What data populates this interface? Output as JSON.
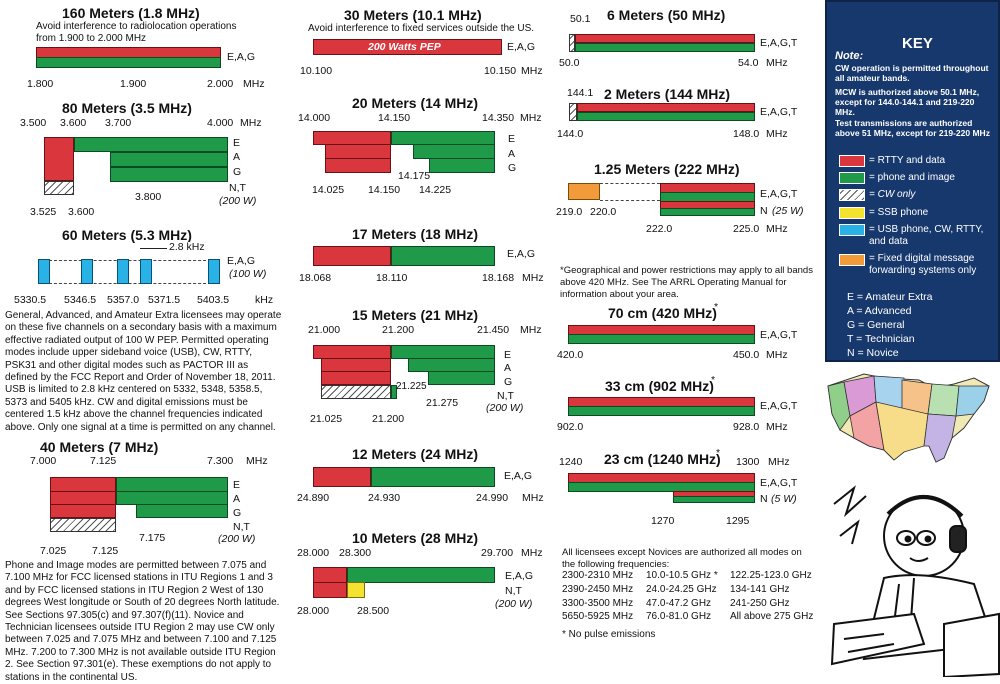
{
  "bands": {
    "b160": {
      "title": "160 Meters (1.8 MHz)",
      "note": "Avoid interference to radiolocation operations from 1.900 to 2.000 MHz",
      "classes": "E,A,G",
      "f1": "1.800",
      "f2": "1.900",
      "f3": "2.000",
      "unit": "MHz"
    },
    "b80": {
      "title": "80 Meters (3.5 MHz)",
      "f1": "3.500",
      "f2": "3.600",
      "f3": "3.700",
      "f4": "4.000",
      "unit": "MHz",
      "c1": "E",
      "c2": "A",
      "c3": "G",
      "c4": "N,T",
      "pw": "(200 W)",
      "f5": "3.800",
      "f6": "3.525",
      "f7": "3.600"
    },
    "b60": {
      "title": "60 Meters (5.3 MHz)",
      "bw": "2.8 kHz",
      "classes": "E,A,G",
      "pw": "(100 W)",
      "ch": [
        "5330.5",
        "5346.5",
        "5357.0",
        "5371.5",
        "5403.5"
      ],
      "unit": "kHz",
      "note": "General, Advanced, and Amateur Extra licensees may operate on these five channels on a secondary basis with a maximum effective radiated output of 100 W PEP. Permitted operating modes include upper sideband voice (USB), CW, RTTY, PSK31 and other digital modes such as PACTOR III as defined by the FCC Report and Order of November 18, 2011. USB is limited to 2.8 kHz centered on 5332, 5348, 5358.5, 5373 and 5405 kHz. CW and digital emissions must be centered 1.5 kHz above the channel frequencies indicated above. Only one signal at a time is permitted on any channel."
    },
    "b40": {
      "title": "40 Meters (7 MHz)",
      "f1": "7.000",
      "f2": "7.125",
      "f3": "7.300",
      "unit": "MHz",
      "c1": "E",
      "c2": "A",
      "c3": "G",
      "c4": "N,T",
      "pw": "(200 W)",
      "f4": "7.175",
      "f5": "7.025",
      "f6": "7.125",
      "note": "Phone and Image modes are permitted between 7.075 and 7.100 MHz for FCC licensed stations in ITU Regions 1 and 3 and by FCC licensed stations in ITU Region 2 West of 130 degrees West longitude or South of 20 degrees North latitude. See Sections 97.305(c) and 97.307(f)(11). Novice and Technician licensees outside ITU Region 2 may use CW only between 7.025 and 7.075 MHz and between 7.100 and 7.125 MHz. 7.200 to 7.300 MHz is not available outside ITU Region 2. See Section 97.301(e). These exemptions do not apply to stations in the continental US."
    },
    "b30": {
      "title": "30 Meters (10.1 MHz)",
      "note": "Avoid interference to fixed services outside the US.",
      "pep": "200 Watts PEP",
      "classes": "E,A,G",
      "f1": "10.100",
      "f2": "10.150",
      "unit": "MHz"
    },
    "b20": {
      "title": "20 Meters (14 MHz)",
      "f1": "14.000",
      "f2": "14.150",
      "f3": "14.350",
      "unit": "MHz",
      "c1": "E",
      "c2": "A",
      "c3": "G",
      "f4": "14.175",
      "f5": "14.025",
      "f6": "14.150",
      "f7": "14.225"
    },
    "b17": {
      "title": "17 Meters (18 MHz)",
      "classes": "E,A,G",
      "f1": "18.068",
      "f2": "18.110",
      "f3": "18.168",
      "unit": "MHz"
    },
    "b15": {
      "title": "15 Meters (21 MHz)",
      "f1": "21.000",
      "f2": "21.200",
      "f3": "21.450",
      "unit": "MHz",
      "c1": "E",
      "c2": "A",
      "c3": "G",
      "c4": "N,T",
      "pw": "(200 W)",
      "f4": "21.225",
      "f5": "21.275",
      "f6": "21.025",
      "f7": "21.200"
    },
    "b12": {
      "title": "12 Meters (24 MHz)",
      "classes": "E,A,G",
      "f1": "24.890",
      "f2": "24.930",
      "f3": "24.990",
      "unit": "MHz"
    },
    "b10": {
      "title": "10 Meters (28 MHz)",
      "f1": "28.000",
      "f2": "28.300",
      "f3": "29.700",
      "unit": "MHz",
      "c1": "E,A,G",
      "c2": "N,T",
      "pw": "(200 W)",
      "f4": "28.000",
      "f5": "28.500"
    },
    "b6": {
      "title": "6 Meters (50 MHz)",
      "f0": "50.1",
      "classes": "E,A,G,T",
      "f1": "50.0",
      "f2": "54.0",
      "unit": "MHz"
    },
    "b2": {
      "title": "2 Meters (144 MHz)",
      "f0": "144.1",
      "classes": "E,A,G,T",
      "f1": "144.0",
      "f2": "148.0",
      "unit": "MHz"
    },
    "b125": {
      "title": "1.25 Meters (222 MHz)",
      "classes": "E,A,G,T",
      "c2": "N",
      "pw": "(25 W)",
      "f1": "219.0",
      "f2": "220.0",
      "f3": "222.0",
      "f4": "225.0",
      "unit": "MHz"
    },
    "geo": "*Geographical and power restrictions may apply to all bands above 420 MHz. See The ARRL Operating Manual for information about your area.",
    "b70": {
      "title": "70 cm (420 MHz)",
      "star": "*",
      "classes": "E,A,G,T",
      "f1": "420.0",
      "f2": "450.0",
      "unit": "MHz"
    },
    "b33": {
      "title": "33 cm (902 MHz)",
      "star": "*",
      "classes": "E,A,G,T",
      "f1": "902.0",
      "f2": "928.0",
      "unit": "MHz"
    },
    "b23": {
      "title": "23 cm (1240 MHz)",
      "star": "*",
      "f1": "1240",
      "f2": "1300",
      "unit": "MHz",
      "classes": "E,A,G,T",
      "c2": "N",
      "pw": "(5 W)",
      "f3": "1270",
      "f4": "1295"
    }
  },
  "shf": {
    "intro": "All licensees except Novices are authorized all modes on the following frequencies:",
    "cols": [
      [
        "2300-2310 MHz",
        "2390-2450 MHz",
        "3300-3500 MHz",
        "5650-5925 MHz"
      ],
      [
        "10.0-10.5 GHz *",
        "24.0-24.25 GHz",
        "47.0-47.2 GHz",
        "76.0-81.0 GHz"
      ],
      [
        "122.25-123.0 GHz",
        "134-141 GHz",
        "241-250 GHz",
        "All above 275 GHz"
      ]
    ],
    "foot": "* No pulse emissions"
  },
  "key": {
    "title": "KEY",
    "note_head": "Note:",
    "notes": [
      "CW operation is permitted throughout all amateur bands.",
      "MCW is authorized above 50.1 MHz, except for 144.0-144.1 and 219-220 MHz.",
      "Test transmissions are authorized above 51 MHz, except for 219-220 MHz"
    ],
    "legend": [
      "= RTTY and data",
      "= phone and image",
      "= CW only",
      "= SSB phone",
      "= USB phone, CW, RTTY, and data",
      "= Fixed digital message forwarding systems only"
    ],
    "classes": [
      "E = Amateur Extra",
      "A = Advanced",
      "G = General",
      "T = Technician",
      "N = Novice"
    ],
    "colors": {
      "rtty": "#d9363e",
      "phone": "#1f9a49",
      "ssb": "#f3e22f",
      "usb": "#29b2e6",
      "fixed": "#f29b3a",
      "panel": "#17386d"
    }
  }
}
